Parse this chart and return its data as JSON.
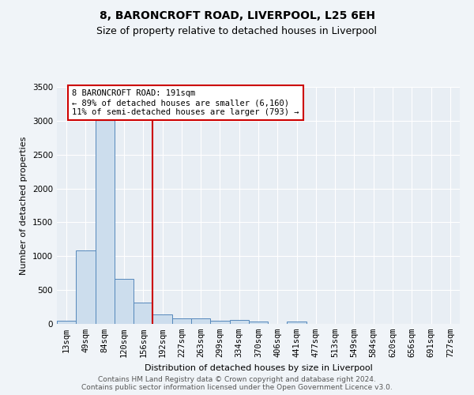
{
  "title": "8, BARONCROFT ROAD, LIVERPOOL, L25 6EH",
  "subtitle": "Size of property relative to detached houses in Liverpool",
  "xlabel": "Distribution of detached houses by size in Liverpool",
  "ylabel": "Number of detached properties",
  "bar_categories": [
    "13sqm",
    "49sqm",
    "84sqm",
    "120sqm",
    "156sqm",
    "192sqm",
    "227sqm",
    "263sqm",
    "299sqm",
    "334sqm",
    "370sqm",
    "406sqm",
    "441sqm",
    "477sqm",
    "513sqm",
    "549sqm",
    "584sqm",
    "620sqm",
    "656sqm",
    "691sqm",
    "727sqm"
  ],
  "bar_values": [
    50,
    1080,
    3050,
    660,
    310,
    145,
    85,
    80,
    50,
    55,
    30,
    0,
    30,
    0,
    0,
    0,
    0,
    0,
    0,
    0,
    0
  ],
  "bar_color": "#ccdded",
  "bar_edge_color": "#5588bb",
  "property_line_x": 4.5,
  "annotation_text": "8 BARONCROFT ROAD: 191sqm\n← 89% of detached houses are smaller (6,160)\n11% of semi-detached houses are larger (793) →",
  "annotation_box_color": "#ffffff",
  "annotation_border_color": "#cc0000",
  "ylim": [
    0,
    3500
  ],
  "yticks": [
    0,
    500,
    1000,
    1500,
    2000,
    2500,
    3000,
    3500
  ],
  "footer_line1": "Contains HM Land Registry data © Crown copyright and database right 2024.",
  "footer_line2": "Contains public sector information licensed under the Open Government Licence v3.0.",
  "bg_color": "#f0f4f8",
  "plot_bg_color": "#e8eef4",
  "grid_color": "#ffffff",
  "title_fontsize": 10,
  "subtitle_fontsize": 9,
  "annotation_fontsize": 7.5,
  "tick_fontsize": 7.5,
  "ylabel_fontsize": 8,
  "xlabel_fontsize": 8,
  "footer_fontsize": 6.5
}
